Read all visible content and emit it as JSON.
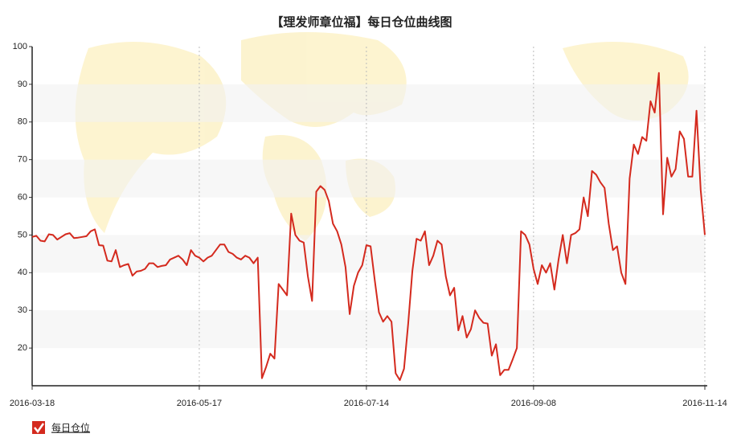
{
  "chart_data": {
    "type": "line",
    "title": "【理发师章位福】每日仓位曲线图",
    "categories": [
      "2016-03-18",
      null,
      null,
      null,
      null,
      null,
      null,
      null,
      null,
      null,
      null,
      null,
      null,
      null,
      null,
      null,
      null,
      null,
      null,
      null,
      null,
      null,
      null,
      null,
      null,
      null,
      null,
      null,
      null,
      null,
      null,
      null,
      null,
      null,
      null,
      null,
      null,
      null,
      null,
      null,
      "2016-05-17",
      null,
      null,
      null,
      null,
      null,
      null,
      null,
      null,
      null,
      null,
      null,
      null,
      null,
      null,
      null,
      null,
      null,
      null,
      null,
      null,
      null,
      null,
      null,
      null,
      null,
      null,
      null,
      null,
      null,
      null,
      null,
      null,
      null,
      null,
      null,
      null,
      null,
      null,
      null,
      "2016-07-14",
      null,
      null,
      null,
      null,
      null,
      null,
      null,
      null,
      null,
      null,
      null,
      null,
      null,
      null,
      null,
      null,
      null,
      null,
      null,
      null,
      null,
      null,
      null,
      null,
      null,
      null,
      null,
      null,
      null,
      null,
      null,
      null,
      null,
      null,
      null,
      null,
      null,
      null,
      null,
      "2016-09-08",
      null,
      null,
      null,
      null,
      null,
      null,
      null,
      null,
      null,
      null,
      null,
      null,
      null,
      null,
      null,
      null,
      null,
      null,
      null,
      null,
      null,
      null,
      null,
      null,
      null,
      null,
      null,
      null,
      null,
      null,
      null,
      null,
      null,
      null,
      null,
      null,
      null,
      null,
      null,
      null,
      "2016-11-14"
    ],
    "series": [
      {
        "name": "每日仓位",
        "color": "#d42a1e",
        "values": [
          49.5,
          49.8,
          48.5,
          48.3,
          50.2,
          50,
          48.8,
          49.5,
          50.2,
          50.5,
          49.2,
          49.3,
          49.5,
          49.7,
          51,
          51.5,
          47.3,
          47.2,
          43.2,
          43,
          46,
          41.5,
          42,
          42.3,
          39.2,
          40.3,
          40.5,
          41,
          42.5,
          42.5,
          41.5,
          41.8,
          42,
          43.5,
          44,
          44.5,
          43.5,
          42,
          46,
          44.5,
          44,
          43,
          44,
          44.5,
          46,
          47.5,
          47.5,
          45.5,
          45,
          44,
          43.5,
          44.5,
          44,
          42.5,
          44,
          12,
          15,
          18.5,
          17.2,
          37,
          35.5,
          34,
          55.7,
          50,
          48.5,
          48,
          39,
          32.5,
          61.5,
          63,
          62,
          59,
          53,
          51,
          47.5,
          41.5,
          29,
          36.5,
          40,
          42,
          47.3,
          47,
          38,
          29.5,
          27,
          28.5,
          27,
          13.3,
          11.5,
          14.5,
          26.5,
          40.5,
          49,
          48.5,
          51,
          42,
          44.5,
          48.5,
          47.5,
          39,
          34,
          36,
          24.7,
          28.5,
          22.8,
          25,
          30,
          28,
          26.7,
          26.5,
          18,
          21,
          12.8,
          14.2,
          14.2,
          17,
          20,
          51,
          50,
          47.5,
          41,
          37,
          42,
          40,
          42.5,
          35.5,
          43.5,
          50,
          42.5,
          50,
          50.5,
          51.5,
          60,
          55,
          67,
          66,
          64,
          62.5,
          53,
          46,
          47,
          40,
          37,
          65,
          74,
          71.5,
          76,
          75,
          85.5,
          82.5,
          93,
          55.5,
          70.5,
          65.5,
          67.5,
          77.5,
          75.5,
          65.5,
          65.5,
          83,
          62,
          50
        ]
      }
    ],
    "ylim": [
      10,
      100
    ],
    "yticks": [
      20,
      30,
      40,
      50,
      60,
      70,
      80,
      90,
      100
    ],
    "grid": true
  }
}
